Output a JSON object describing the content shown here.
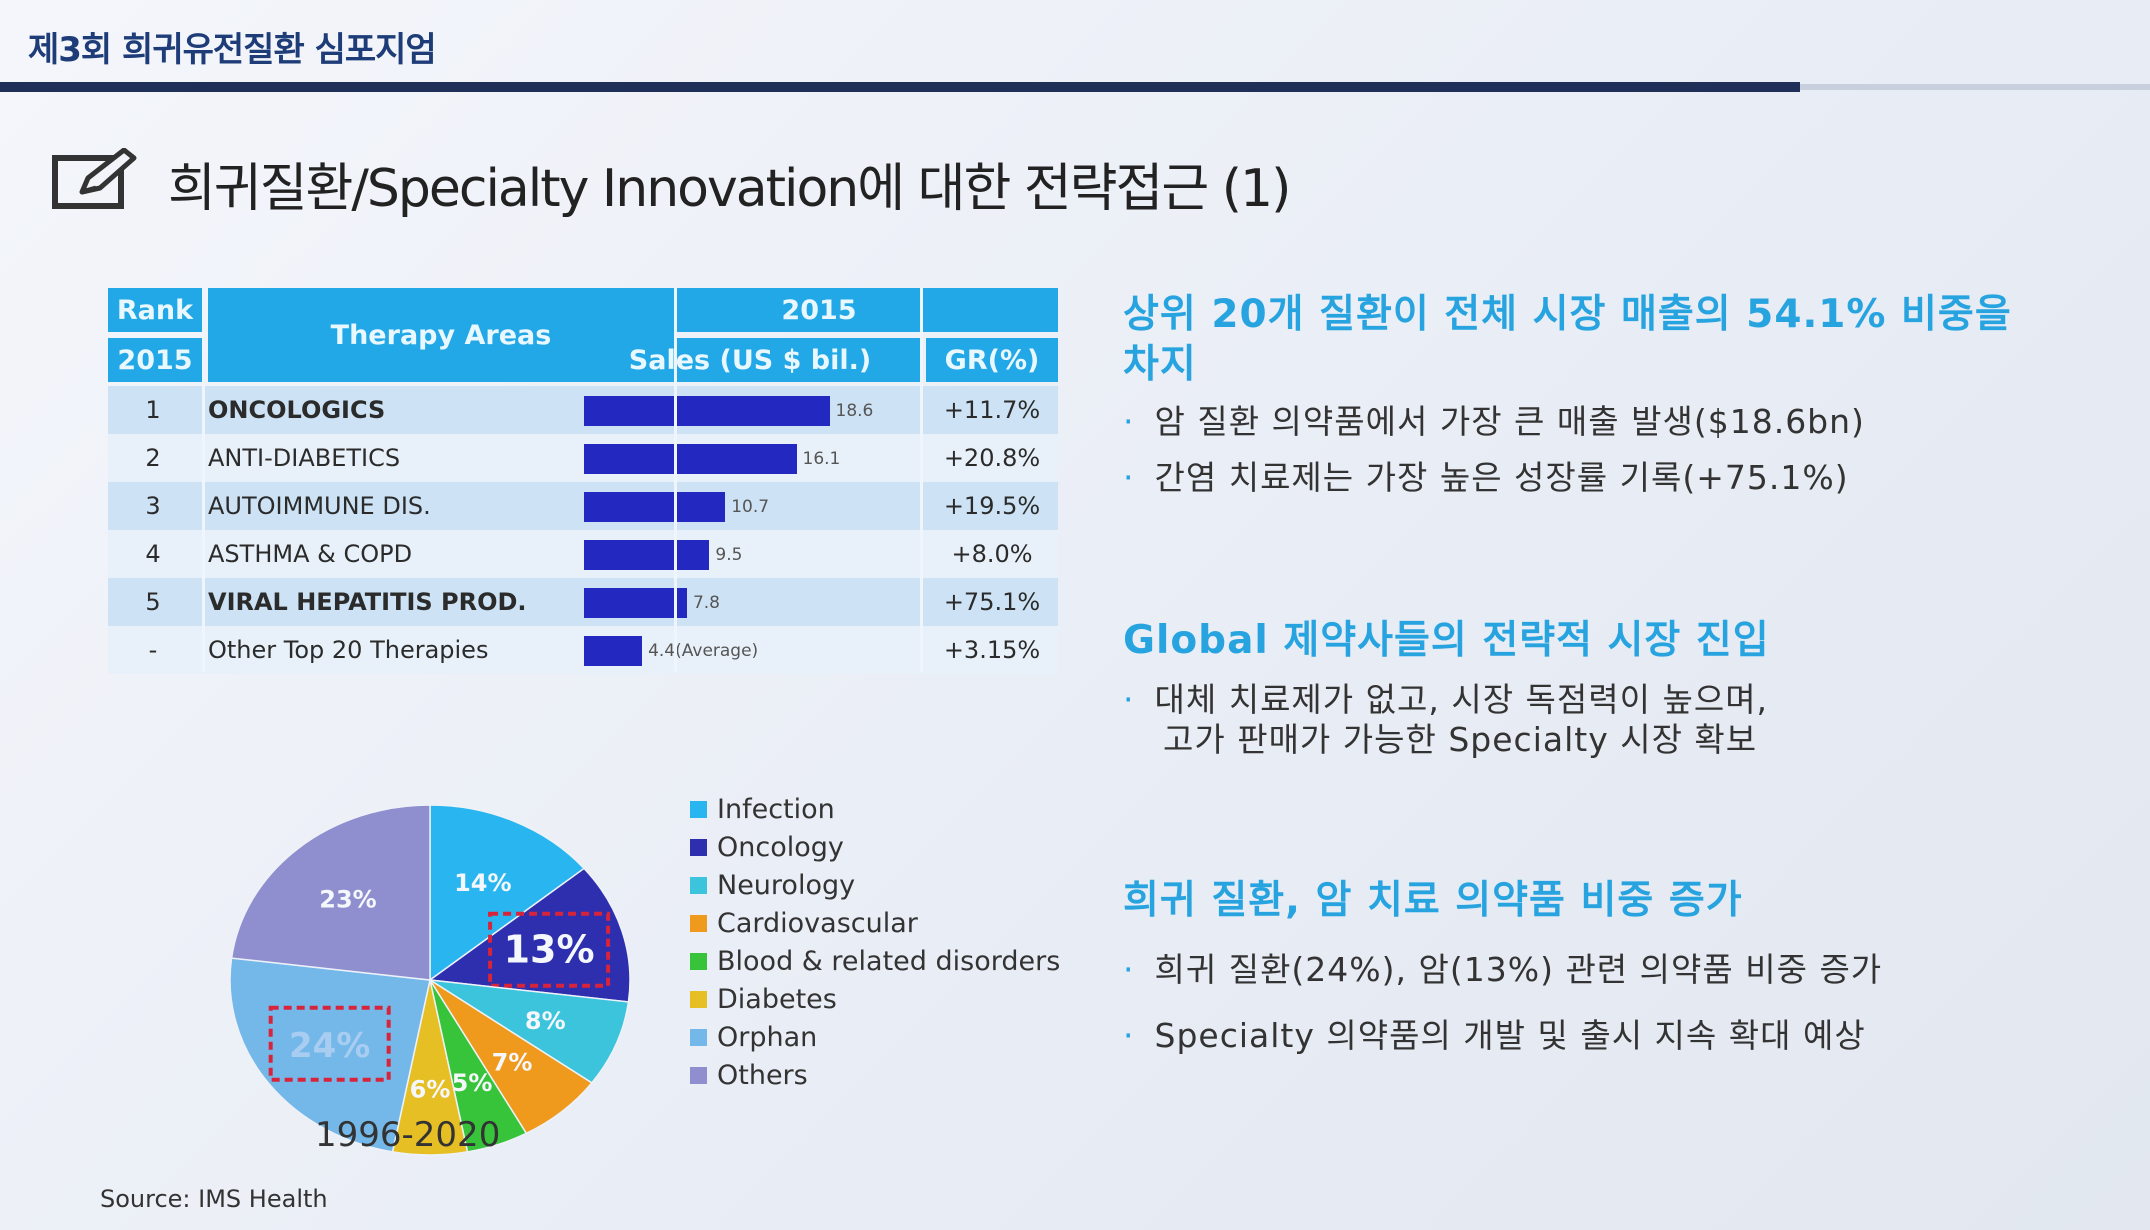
{
  "header": {
    "title": "제3회 희귀유전질환 심포지엄"
  },
  "main_title": "희귀질환/Specialty Innovation에 대한 전략접근 (1)",
  "table": {
    "rank_header": "Rank",
    "rank_year": "2015",
    "therapy_header": "Therapy Areas",
    "year_header": "2015",
    "sales_header": "Sales (US $ bil.)",
    "gr_header": "GR(%)",
    "rows": [
      {
        "rank": "1",
        "name": "ONCOLOGICS",
        "sales": 18.6,
        "sales_label": "18.6",
        "gr": "+11.7%"
      },
      {
        "rank": "2",
        "name": "ANTI-DIABETICS",
        "sales": 16.1,
        "sales_label": "16.1",
        "gr": "+20.8%"
      },
      {
        "rank": "3",
        "name": "AUTOIMMUNE DIS.",
        "sales": 10.7,
        "sales_label": "10.7",
        "gr": "+19.5%"
      },
      {
        "rank": "4",
        "name": "ASTHMA & COPD",
        "sales": 9.5,
        "sales_label": "9.5",
        "gr": "+8.0%"
      },
      {
        "rank": "5",
        "name": "VIRAL HEPATITIS PROD.",
        "sales": 7.8,
        "sales_label": "7.8",
        "gr": "+75.1%"
      },
      {
        "rank": "-",
        "name": "Other Top 20 Therapies",
        "sales": 4.4,
        "sales_label": "4.4(Average)",
        "gr": "+3.15%"
      }
    ]
  },
  "sections": [
    {
      "heading": "상위 20개 질환이 전체 시장 매출의 54.1% 비중을 차지",
      "bullets": [
        "암 질환 의약품에서 가장 큰 매출 발생($18.6bn)",
        "간염 치료제는 가장 높은 성장률 기록(+75.1%)"
      ]
    },
    {
      "heading": "Global 제약사들의 전략적 시장 진입",
      "bullets": [
        "대체 치료제가 없고, 시장 독점력이 높으며,",
        "고가 판매가 가능한 Specialty 시장 확보"
      ]
    },
    {
      "heading": "희귀 질환, 암 치료 의약품 비중 증가",
      "bullets": [
        "희귀 질환(24%), 암(13%) 관련 의약품 비중 증가",
        "Specialty 의약품의 개발 및 출시 지속 확대 예상"
      ]
    }
  ],
  "period": "1996-2020",
  "source": "Source: IMS Health",
  "colors": {
    "accent": "#27a4e0",
    "table_header": "#22a8e6",
    "bar": "#2228c0",
    "header_rule": "#1f2f58"
  },
  "chart_data": [
    {
      "type": "bar",
      "categories": [
        "ONCOLOGICS",
        "ANTI-DIABETICS",
        "AUTOIMMUNE DIS.",
        "ASTHMA & COPD",
        "VIRAL HEPATITIS PROD.",
        "Other Top 20 Therapies"
      ],
      "series": [
        {
          "name": "Sales (US $ bil.)",
          "values": [
            18.6,
            16.1,
            10.7,
            9.5,
            7.8,
            4.4
          ]
        }
      ],
      "title": "",
      "xlabel": "",
      "ylabel": ""
    },
    {
      "type": "pie",
      "title": "1996-2020",
      "labels": [
        "Infection",
        "Oncology",
        "Neurology",
        "Cardiovascular",
        "Blood & related disorders",
        "Diabetes",
        "Orphan",
        "Others"
      ],
      "values": [
        14,
        13,
        8,
        7,
        5,
        6,
        24,
        23
      ],
      "value_labels": [
        "14%",
        "13%",
        "8%",
        "7%",
        "5%",
        "6%",
        "24%",
        "23%"
      ],
      "colors": [
        "#29b6f0",
        "#2d2fae",
        "#3cc4dc",
        "#ef9a1c",
        "#37c43a",
        "#e6bf25",
        "#74b8ea",
        "#8f8fd0"
      ],
      "highlighted": [
        "Oncology",
        "Orphan"
      ],
      "legend": "right"
    }
  ]
}
